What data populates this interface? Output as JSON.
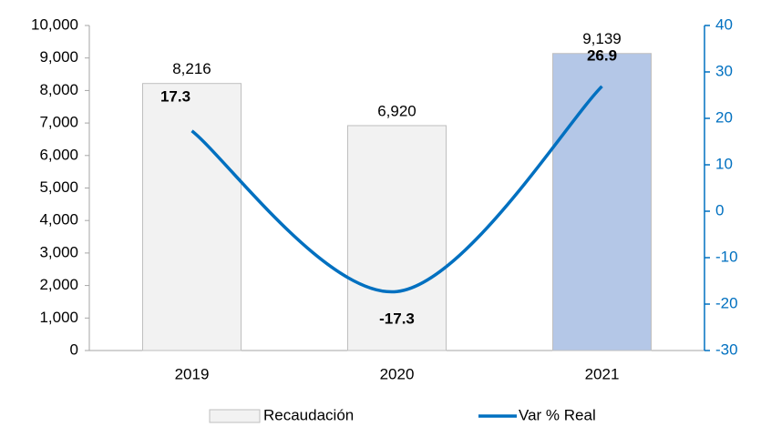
{
  "chart_data": {
    "type": "bar",
    "categories": [
      "2019",
      "2020",
      "2021"
    ],
    "series": [
      {
        "name": "Recaudación",
        "type": "bar",
        "colors": [
          "#f2f2f2",
          "#f2f2f2",
          "#b4c7e7"
        ],
        "values": [
          8216,
          6920,
          9139
        ],
        "value_labels": [
          "8,216",
          "6,920",
          "9,139"
        ]
      },
      {
        "name": "Var % Real",
        "type": "line",
        "axis": "y2",
        "color": "#0070c0",
        "values": [
          17.3,
          -17.3,
          26.9
        ]
      }
    ],
    "ylim": [
      0,
      10000
    ],
    "yticks": [
      0,
      {
        "value": 1000,
        "label": "1,000"
      },
      {
        "value": 2000,
        "label": "2,000"
      },
      {
        "value": 3000,
        "label": "3,000"
      },
      {
        "value": 4000,
        "label": "4,000"
      },
      {
        "value": 5000,
        "label": "5,000"
      },
      {
        "value": 6000,
        "label": "6,000"
      },
      {
        "value": 7000,
        "label": "7,000"
      },
      {
        "value": 8000,
        "label": "8,000"
      },
      {
        "value": 9000,
        "label": "9,000"
      },
      {
        "value": 10000,
        "label": "10,000"
      }
    ],
    "y2lim": [
      -30,
      40
    ],
    "y2ticks": [
      -30,
      -20,
      -10,
      0,
      10,
      20,
      30,
      40
    ],
    "legend": "bottom",
    "grid": false
  }
}
